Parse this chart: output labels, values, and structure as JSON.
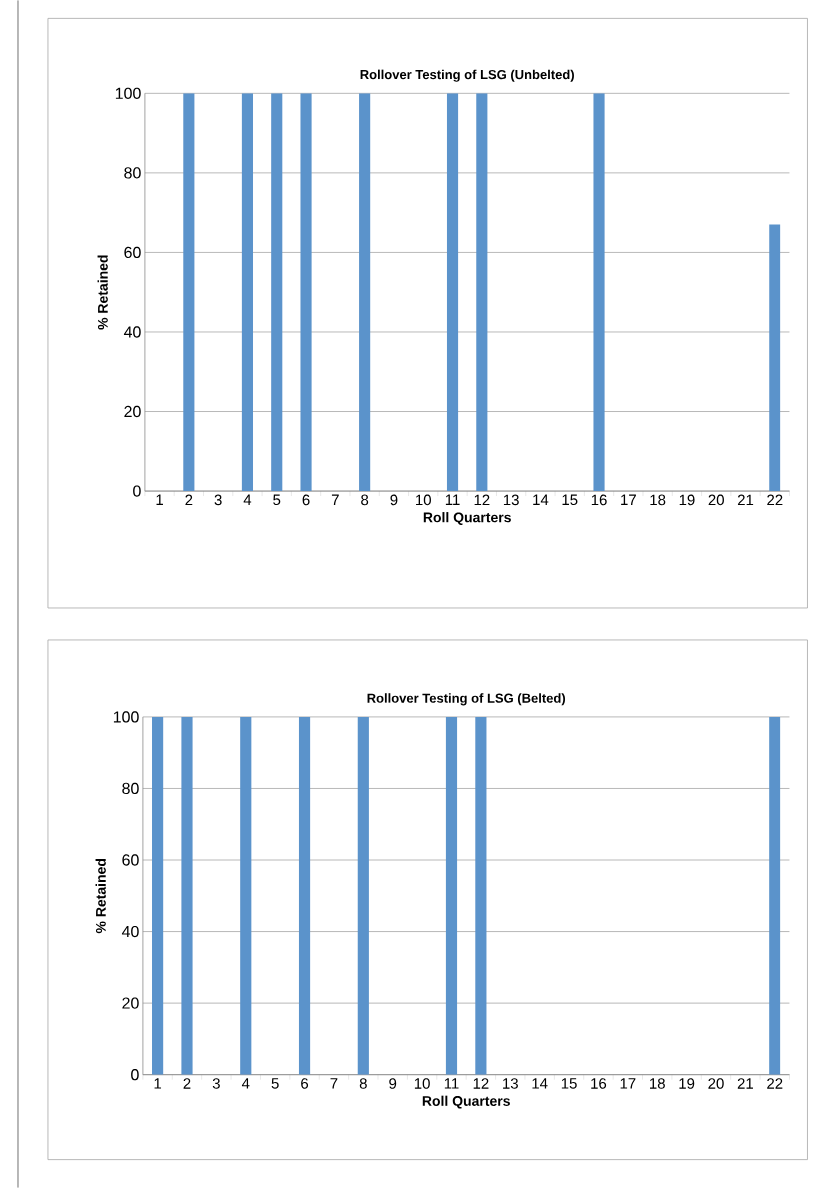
{
  "chart_data": [
    {
      "type": "bar",
      "title": "Rollover Testing of LSG (Unbelted)",
      "xlabel": "Roll Quarters",
      "ylabel": "% Retained",
      "categories": [
        "1",
        "2",
        "3",
        "4",
        "5",
        "6",
        "7",
        "8",
        "9",
        "10",
        "11",
        "12",
        "13",
        "14",
        "15",
        "16",
        "17",
        "18",
        "19",
        "20",
        "21",
        "22"
      ],
      "values": [
        0,
        100,
        0,
        100,
        100,
        100,
        0,
        100,
        0,
        0,
        100,
        100,
        0,
        0,
        0,
        100,
        0,
        0,
        0,
        0,
        0,
        67
      ],
      "color": "#5b93cb",
      "ylim": [
        0,
        100
      ],
      "yticks": [
        0,
        20,
        40,
        60,
        80,
        100
      ],
      "grid": "y"
    },
    {
      "type": "bar",
      "title": "Rollover Testing of LSG (Belted)",
      "xlabel": "Roll Quarters",
      "ylabel": "% Retained",
      "categories": [
        "1",
        "2",
        "3",
        "4",
        "5",
        "6",
        "7",
        "8",
        "9",
        "10",
        "11",
        "12",
        "13",
        "14",
        "15",
        "16",
        "17",
        "18",
        "19",
        "20",
        "21",
        "22"
      ],
      "values": [
        100,
        100,
        0,
        100,
        0,
        100,
        0,
        100,
        0,
        0,
        100,
        100,
        0,
        0,
        0,
        0,
        0,
        0,
        0,
        0,
        0,
        100
      ],
      "color": "#5b93cb",
      "ylim": [
        0,
        100
      ],
      "yticks": [
        0,
        20,
        40,
        60,
        80,
        100
      ],
      "grid": "y"
    }
  ]
}
